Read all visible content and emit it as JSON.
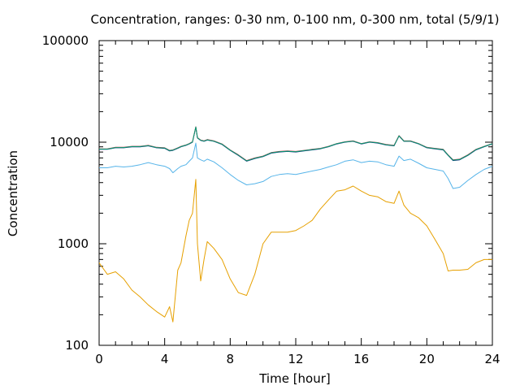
{
  "chart_data": {
    "type": "line",
    "title": "Concentration, ranges: 0-30 nm, 0-100 nm, 0-300 nm, total (5/9/1)",
    "xlabel": "Time [hour]",
    "ylabel": "Concentration",
    "xlim": [
      0,
      24
    ],
    "ylim": [
      100,
      100000
    ],
    "yscale": "log",
    "grid": false,
    "x_ticks": [
      "0",
      "4",
      "8",
      "12",
      "16",
      "20",
      "24"
    ],
    "y_ticks": [
      "100",
      "1000",
      "10000",
      "100000"
    ],
    "x_tick_values": [
      0,
      4,
      8,
      12,
      16,
      20,
      24
    ],
    "y_tick_values": [
      100,
      1000,
      10000,
      100000
    ],
    "x": [
      0,
      0.5,
      1,
      1.5,
      2,
      2.5,
      3,
      3.5,
      4,
      4.3,
      4.5,
      4.8,
      5,
      5.3,
      5.5,
      5.7,
      5.9,
      6,
      6.2,
      6.4,
      6.6,
      7,
      7.5,
      8,
      8.5,
      9,
      9.5,
      10,
      10.5,
      11,
      11.5,
      12,
      12.5,
      13,
      13.5,
      14,
      14.5,
      15,
      15.5,
      16,
      16.5,
      17,
      17.5,
      18,
      18.3,
      18.6,
      19,
      19.5,
      20,
      20.5,
      21,
      21.3,
      21.6,
      22,
      22.5,
      23,
      23.5,
      24
    ],
    "series": [
      {
        "color": "#e6a000",
        "values": [
          650,
          500,
          530,
          450,
          350,
          300,
          250,
          215,
          190,
          240,
          170,
          550,
          650,
          1200,
          1700,
          2000,
          4300,
          1000,
          430,
          700,
          1050,
          900,
          700,
          450,
          330,
          310,
          500,
          1000,
          1300,
          1300,
          1300,
          1350,
          1500,
          1700,
          2200,
          2700,
          3300,
          3400,
          3700,
          3300,
          3000,
          2900,
          2600,
          2500,
          3300,
          2400,
          2000,
          1800,
          1500,
          1100,
          800,
          540,
          550,
          550,
          560,
          650,
          700,
          700
        ]
      },
      {
        "color": "#56b4e9",
        "values": [
          5600,
          5600,
          5800,
          5700,
          5800,
          6000,
          6300,
          6000,
          5800,
          5500,
          5000,
          5500,
          5800,
          6000,
          6500,
          7000,
          9800,
          7000,
          6700,
          6500,
          6800,
          6400,
          5600,
          4800,
          4200,
          3800,
          3900,
          4100,
          4600,
          4800,
          4900,
          4800,
          5000,
          5200,
          5400,
          5700,
          6000,
          6500,
          6700,
          6300,
          6500,
          6400,
          6000,
          5800,
          7300,
          6600,
          6800,
          6200,
          5600,
          5400,
          5200,
          4400,
          3500,
          3600,
          4200,
          4800,
          5400,
          5800
        ]
      },
      {
        "color": "#1a2080",
        "values": [
          8500,
          8500,
          8800,
          8800,
          9000,
          9000,
          9200,
          8800,
          8700,
          8200,
          8300,
          8700,
          9000,
          9300,
          9600,
          10000,
          14000,
          11000,
          10400,
          10200,
          10500,
          10200,
          9500,
          8300,
          7400,
          6500,
          6900,
          7200,
          7800,
          8000,
          8100,
          8000,
          8200,
          8400,
          8600,
          9000,
          9600,
          10000,
          10200,
          9600,
          10000,
          9800,
          9400,
          9200,
          11500,
          10200,
          10200,
          9600,
          8800,
          8600,
          8400,
          7400,
          6600,
          6700,
          7400,
          8400,
          9000,
          9600
        ]
      },
      {
        "color": "#c03040",
        "values": [
          8600,
          8600,
          8900,
          8900,
          9100,
          9100,
          9300,
          8900,
          8800,
          8300,
          8400,
          8800,
          9100,
          9400,
          9700,
          10100,
          14200,
          11100,
          10500,
          10300,
          10600,
          10300,
          9600,
          8400,
          7500,
          6600,
          7000,
          7300,
          7900,
          8100,
          8200,
          8100,
          8300,
          8500,
          8700,
          9100,
          9700,
          10100,
          10300,
          9700,
          10100,
          9900,
          9500,
          9300,
          11600,
          10300,
          10300,
          9700,
          8900,
          8700,
          8500,
          7500,
          6700,
          6800,
          7500,
          8500,
          9100,
          9700
        ]
      },
      {
        "color": "#009e73",
        "values": [
          8550,
          8550,
          8850,
          8850,
          9050,
          9050,
          9250,
          8850,
          8750,
          8250,
          8350,
          8750,
          9050,
          9350,
          9650,
          10050,
          14100,
          11050,
          10450,
          10250,
          10550,
          10250,
          9550,
          8350,
          7450,
          6550,
          6950,
          7250,
          7850,
          8050,
          8150,
          8050,
          8250,
          8450,
          8650,
          9050,
          9650,
          10050,
          10250,
          9650,
          10050,
          9850,
          9450,
          9250,
          11550,
          10250,
          10250,
          9650,
          8850,
          8650,
          8450,
          7450,
          6650,
          6750,
          7450,
          8450,
          9050,
          9650
        ]
      }
    ]
  }
}
